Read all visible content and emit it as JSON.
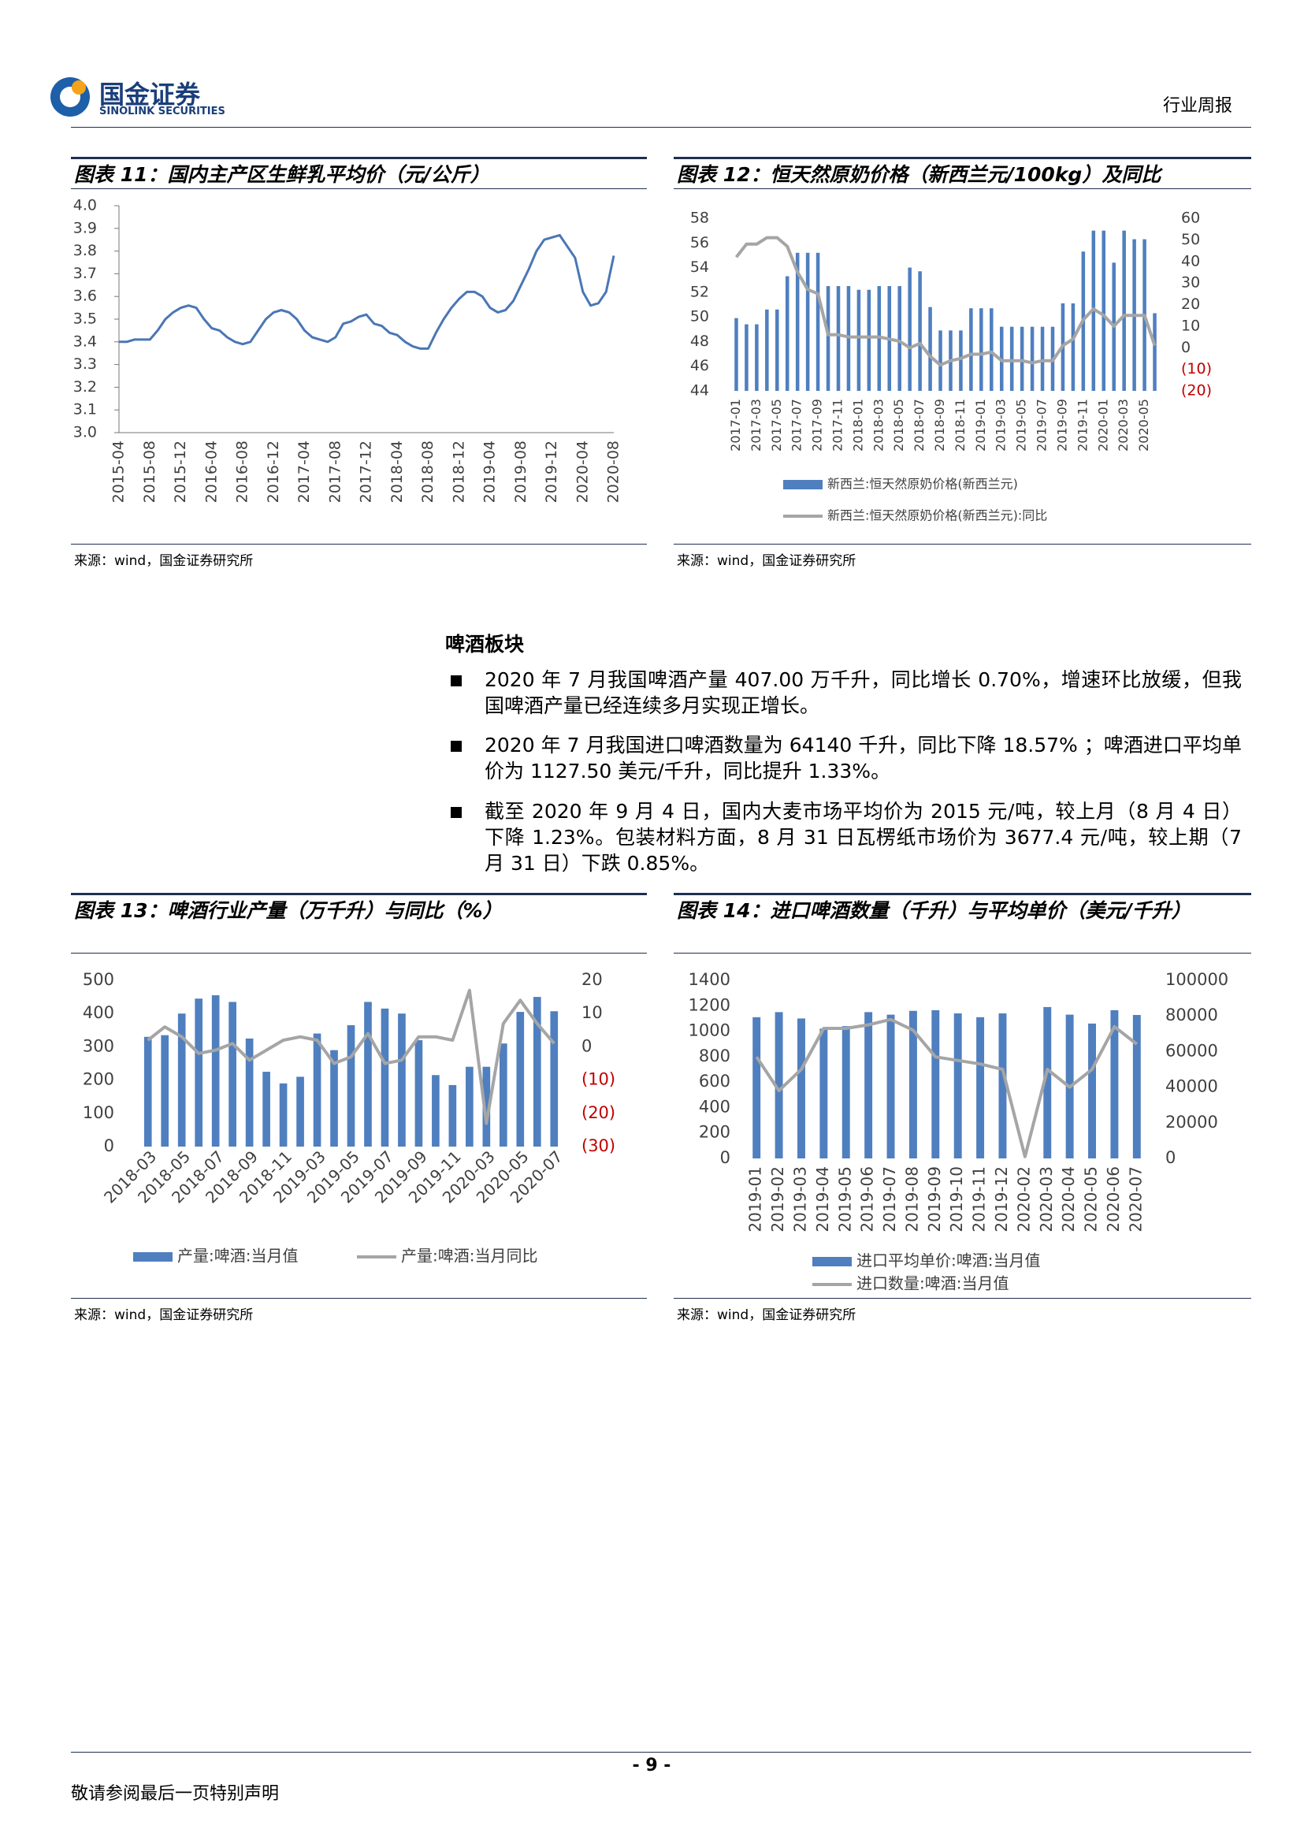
{
  "header": {
    "company": "国金证券",
    "company_en": "SINOLINK SECURITIES",
    "report_type": "行业周报"
  },
  "chart_data": [
    {
      "type": "line",
      "title": "图表 11：国内主产区生鲜乳平均价（元/公斤）",
      "source": "来源：wind，国金证券研究所",
      "color": "#4a76b5",
      "grid": false,
      "categories": [
        "2015-04",
        null,
        null,
        null,
        "2015-08",
        null,
        null,
        null,
        "2015-12",
        null,
        null,
        null,
        "2016-04",
        null,
        null,
        null,
        "2016-08",
        null,
        null,
        null,
        "2016-12",
        null,
        null,
        null,
        "2017-04",
        null,
        null,
        null,
        "2017-08",
        null,
        null,
        null,
        "2017-12",
        null,
        null,
        null,
        "2018-04",
        null,
        null,
        null,
        "2018-08",
        null,
        null,
        null,
        "2018-12",
        null,
        null,
        null,
        "2019-04",
        null,
        null,
        null,
        "2019-08",
        null,
        null,
        null,
        "2019-12",
        null,
        null,
        null,
        "2020-04",
        null,
        null,
        null,
        "2020-08"
      ],
      "values": [
        3.4,
        3.4,
        3.41,
        3.41,
        3.41,
        3.45,
        3.5,
        3.53,
        3.55,
        3.56,
        3.55,
        3.5,
        3.46,
        3.45,
        3.42,
        3.4,
        3.39,
        3.4,
        3.45,
        3.5,
        3.53,
        3.54,
        3.53,
        3.5,
        3.45,
        3.42,
        3.41,
        3.4,
        3.42,
        3.48,
        3.49,
        3.51,
        3.52,
        3.48,
        3.47,
        3.44,
        3.43,
        3.4,
        3.38,
        3.37,
        3.37,
        3.44,
        3.5,
        3.55,
        3.59,
        3.62,
        3.62,
        3.6,
        3.55,
        3.53,
        3.54,
        3.58,
        3.65,
        3.72,
        3.8,
        3.85,
        3.86,
        3.87,
        3.82,
        3.77,
        3.62,
        3.56,
        3.57,
        3.62,
        3.78
      ],
      "ylim": [
        3,
        4
      ],
      "yticks": [
        {
          "value": 3,
          "label": "3.0"
        },
        3.1,
        3.2,
        3.3,
        3.4,
        3.5,
        3.6,
        3.7,
        3.8,
        3.9,
        {
          "value": 4,
          "label": "4.0"
        }
      ]
    },
    {
      "type": "combo",
      "title": "图表 12：恒天然原奶价格（新西兰元/100kg）及同比",
      "source": "来源：wind，国金证券研究所",
      "negative_tick_color": "#c00000",
      "categories": [
        "2017-01",
        null,
        "2017-03",
        null,
        "2017-05",
        null,
        "2017-07",
        null,
        "2017-09",
        null,
        "2017-11",
        null,
        "2018-01",
        null,
        "2018-03",
        null,
        "2018-05",
        null,
        "2018-07",
        null,
        "2018-09",
        null,
        "2018-11",
        null,
        "2019-01",
        null,
        "2019-03",
        null,
        "2019-05",
        null,
        "2019-07",
        null,
        "2019-09",
        null,
        "2019-11",
        null,
        "2020-01",
        null,
        "2020-03",
        null,
        "2020-05",
        null
      ],
      "series": [
        {
          "name": "新西兰:恒天然原奶价格(新西兰元)",
          "type": "bar",
          "color": "#4f7fbf",
          "values": [
            49.9,
            49.4,
            49.4,
            50.6,
            50.6,
            53.3,
            55.2,
            55.2,
            55.2,
            52.5,
            52.5,
            52.5,
            52.2,
            52.2,
            52.5,
            52.5,
            52.5,
            54.0,
            53.7,
            50.8,
            48.9,
            48.9,
            48.9,
            50.7,
            50.7,
            50.7,
            49.2,
            49.2,
            49.2,
            49.2,
            49.2,
            49.2,
            51.1,
            51.1,
            55.3,
            57.0,
            57.0,
            54.4,
            57.0,
            56.3,
            56.3,
            50.3
          ]
        },
        {
          "name": "新西兰:恒天然原奶价格(新西兰元):同比",
          "type": "line",
          "axis": "y2",
          "color": "#a5a5a5",
          "values": [
            42,
            48,
            48,
            51,
            51,
            47,
            35,
            27,
            25,
            6,
            6,
            5,
            5,
            5,
            5,
            4,
            3,
            0,
            2,
            -4,
            -8,
            -6,
            -5,
            -3,
            -3,
            -2,
            -6,
            -6,
            -6,
            -7,
            -6,
            -6,
            1,
            4,
            13,
            18,
            15,
            10,
            15,
            15,
            15,
            1
          ]
        }
      ],
      "ylim": [
        44,
        58
      ],
      "yticks": [
        44,
        46,
        48,
        50,
        52,
        54,
        56,
        58
      ],
      "y2lim": [
        -20,
        60
      ],
      "y2ticks": [
        60,
        50,
        40,
        30,
        20,
        10,
        0,
        {
          "value": -10,
          "label": "(10)"
        },
        {
          "value": -20,
          "label": "(20)"
        }
      ]
    },
    {
      "type": "combo",
      "title": "图表 13：啤酒行业产量（万千升）与同比（%）",
      "source": "来源：wind，国金证券研究所",
      "negative_tick_color": "#c00000",
      "categories": [
        "2018-03",
        null,
        "2018-05",
        null,
        "2018-07",
        null,
        "2018-09",
        null,
        "2018-11",
        null,
        "2019-03",
        null,
        "2019-05",
        null,
        "2019-07",
        null,
        "2019-09",
        null,
        "2019-11",
        null,
        "2020-03",
        null,
        "2020-05",
        null,
        "2020-07"
      ],
      "series": [
        {
          "name": "产量:啤酒:当月值",
          "type": "bar",
          "color": "#4f7fbf",
          "values": [
            330,
            335,
            400,
            445,
            455,
            435,
            325,
            225,
            190,
            210,
            340,
            290,
            365,
            435,
            415,
            400,
            320,
            215,
            185,
            240,
            240,
            310,
            405,
            450,
            407
          ]
        },
        {
          "name": "产量:啤酒:当月同比",
          "type": "line",
          "axis": "y2",
          "color": "#a5a5a5",
          "values": [
            2,
            6,
            3,
            -2,
            -1,
            1,
            -4,
            -1,
            2,
            3,
            2,
            -5,
            -3,
            4,
            -5,
            -4,
            3,
            3,
            2,
            17,
            -23,
            7,
            14,
            7,
            1
          ]
        }
      ],
      "ylim": [
        0,
        500
      ],
      "yticks": [
        0,
        100,
        200,
        300,
        400,
        500
      ],
      "y2lim": [
        -30,
        20
      ],
      "y2ticks": [
        20,
        10,
        0,
        {
          "value": -10,
          "label": "(10)"
        },
        {
          "value": -20,
          "label": "(20)"
        },
        {
          "value": -30,
          "label": "(30)"
        }
      ]
    },
    {
      "type": "combo",
      "title": "图表 14：进口啤酒数量（千升）与平均单价（美元/千升）",
      "source": "来源：wind，国金证券研究所",
      "categories": [
        "2019-01",
        "2019-02",
        "2019-03",
        "2019-04",
        "2019-05",
        "2019-06",
        "2019-07",
        "2019-08",
        "2019-09",
        "2019-10",
        "2019-11",
        "2019-12",
        "2020-02",
        "2020-03",
        "2020-04",
        "2020-05",
        "2020-06",
        "2020-07"
      ],
      "series": [
        {
          "name": "进口平均单价:啤酒:当月值",
          "type": "bar",
          "color": "#4f7fbf",
          "values": [
            1110,
            1150,
            1100,
            1020,
            1040,
            1150,
            1130,
            1160,
            1165,
            1140,
            1110,
            1140,
            null,
            1190,
            1130,
            1060,
            1165,
            1127.5
          ]
        },
        {
          "name": "进口数量:啤酒:当月值",
          "type": "line",
          "axis": "y2",
          "color": "#a5a5a5",
          "values": [
            57000,
            38000,
            50000,
            73000,
            73000,
            75000,
            78000,
            72000,
            57000,
            55000,
            53000,
            50000,
            1000,
            50000,
            40000,
            50000,
            74000,
            64140
          ]
        }
      ],
      "ylim": [
        0,
        1400
      ],
      "yticks": [
        0,
        200,
        400,
        600,
        800,
        1000,
        1200,
        1400
      ],
      "y2lim": [
        0,
        100000
      ],
      "y2ticks": [
        0,
        20000,
        40000,
        60000,
        80000,
        100000
      ]
    }
  ],
  "section": {
    "heading": "啤酒板块",
    "bullets": [
      "2020 年 7 月我国啤酒产量 407.00 万千升，同比增长 0.70%，增速环比放缓，但我国啤酒产量已经连续多月实现正增长。",
      "2020 年 7 月我国进口啤酒数量为 64140 千升，同比下降 18.57% ；啤酒进口平均单价为 1127.50 美元/千升，同比提升 1.33%。",
      "截至 2020 年 9 月 4 日，国内大麦市场平均价为 2015 元/吨，较上月（8 月 4 日）下降 1.23%。包装材料方面，8 月 31 日瓦楞纸市场价为 3677.4 元/吨，较上期（7 月 31 日）下跌 0.85%。"
    ]
  },
  "footer": {
    "page": "- 9 -",
    "disclaimer": "敬请参阅最后一页特别声明"
  }
}
